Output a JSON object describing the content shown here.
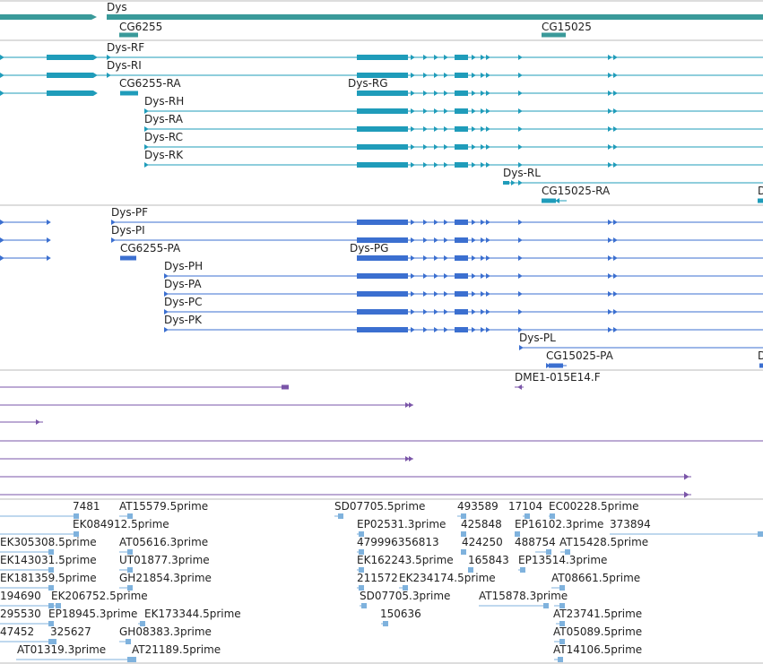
{
  "colors": {
    "gene": "#3a9a9a",
    "mrna": "#1f9cba",
    "protein": "#3b6fd0",
    "clone": "#7a55a8",
    "est": "#7fb2dd",
    "divider": "#bbbbbb"
  },
  "gene_track": {
    "labels": [
      "Dys",
      "CG6255",
      "CG15025"
    ]
  },
  "transcript_track": {
    "labels": [
      "Dys-RF",
      "Dys-RI",
      "CG6255-RA",
      "Dys-RG",
      "Dys-RH",
      "Dys-RA",
      "Dys-RC",
      "Dys-RK",
      "Dys-RL",
      "CG15025-RA",
      "D"
    ]
  },
  "protein_track": {
    "labels": [
      "Dys-PF",
      "Dys-PI",
      "CG6255-PA",
      "Dys-PG",
      "Dys-PH",
      "Dys-PA",
      "Dys-PC",
      "Dys-PK",
      "Dys-PL",
      "CG15025-PA",
      "D"
    ]
  },
  "clone_track": {
    "labels": [
      "DME1-015E14.F"
    ]
  },
  "est_track": {
    "labels": [
      "7481",
      "AT15579.5prime",
      "SD07705.5prime",
      "493589",
      "17104",
      "EC00228.5prime",
      "EK084912.5prime",
      "EP02531.3prime",
      "425848",
      "EP16102.3prime",
      "373894",
      "EK305308.5prime",
      "AT05616.3prime",
      "479996356813",
      "424250",
      "488754",
      "AT15428.5prime",
      "EK143031.5prime",
      "UT01877.3prime",
      "EK162243.5prime",
      "165843",
      "EP13514.3prime",
      "EK181359.5prime",
      "GH21854.3prime",
      "211572",
      "EK234174.5prime",
      "AT08661.5prime",
      "194690",
      "EK206752.5prime",
      "SD07705.3prime",
      "AT15878.3prime",
      "295530",
      "EP18945.3prime",
      "EK173344.5prime",
      "150636",
      "AT23741.5prime",
      "47452",
      "325627",
      "GH08383.3prime",
      "AT05089.5prime",
      "AT01319.3prime",
      "AT21189.5prime",
      "AT14106.5prime"
    ]
  }
}
